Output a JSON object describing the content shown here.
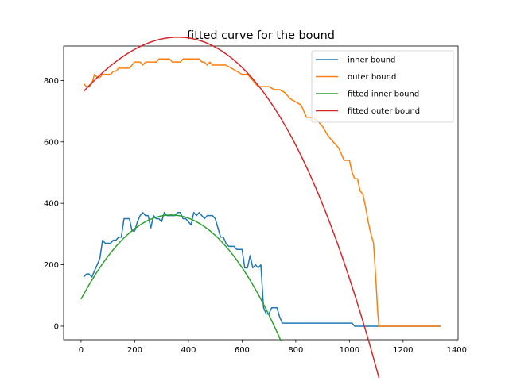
{
  "chart_data": {
    "type": "line",
    "title": "fitted curve for the bound",
    "xlabel": "",
    "ylabel": "",
    "xlim": [
      -65,
      1405
    ],
    "ylim": [
      -44,
      912
    ],
    "xticks": [
      0,
      200,
      400,
      600,
      800,
      1000,
      1200,
      1400
    ],
    "yticks": [
      0,
      200,
      400,
      600,
      800
    ],
    "grid": false,
    "legend_position": "upper right",
    "series": [
      {
        "name": "inner bound",
        "color": "#1f77b4",
        "x": [
          10,
          20,
          30,
          40,
          50,
          60,
          70,
          80,
          90,
          100,
          110,
          120,
          130,
          140,
          150,
          160,
          170,
          180,
          190,
          200,
          210,
          220,
          230,
          240,
          250,
          260,
          270,
          280,
          290,
          300,
          310,
          320,
          330,
          340,
          350,
          360,
          370,
          380,
          390,
          400,
          410,
          420,
          430,
          440,
          450,
          460,
          470,
          480,
          490,
          500,
          510,
          520,
          530,
          540,
          550,
          560,
          570,
          580,
          590,
          600,
          610,
          620,
          630,
          640,
          650,
          660,
          670,
          680,
          690,
          700,
          710,
          720,
          730,
          740,
          750,
          760,
          770,
          780,
          790,
          800,
          850,
          900,
          950,
          1000,
          1010,
          1020,
          1030,
          1040,
          1050,
          1100,
          1150,
          1200,
          1250,
          1300,
          1340
        ],
        "y": [
          160,
          170,
          170,
          160,
          180,
          200,
          220,
          280,
          270,
          270,
          270,
          280,
          280,
          290,
          290,
          350,
          350,
          350,
          310,
          310,
          340,
          360,
          370,
          360,
          360,
          320,
          360,
          350,
          350,
          340,
          370,
          360,
          360,
          360,
          360,
          370,
          370,
          350,
          350,
          340,
          330,
          370,
          360,
          370,
          360,
          350,
          360,
          360,
          360,
          350,
          320,
          290,
          290,
          270,
          260,
          260,
          260,
          250,
          250,
          250,
          190,
          190,
          230,
          190,
          200,
          190,
          200,
          60,
          40,
          40,
          60,
          60,
          60,
          30,
          10,
          10,
          10,
          10,
          10,
          10,
          10,
          10,
          10,
          10,
          10,
          0,
          0,
          0,
          0,
          0,
          0,
          0,
          0,
          0,
          0
        ]
      },
      {
        "name": "outer bound",
        "color": "#ff7f0e",
        "x": [
          10,
          20,
          30,
          40,
          50,
          60,
          70,
          80,
          90,
          100,
          110,
          120,
          130,
          140,
          150,
          160,
          170,
          180,
          190,
          200,
          210,
          220,
          230,
          240,
          250,
          260,
          270,
          280,
          290,
          300,
          310,
          320,
          330,
          340,
          350,
          360,
          370,
          380,
          390,
          400,
          410,
          420,
          430,
          440,
          450,
          460,
          470,
          480,
          490,
          500,
          520,
          540,
          560,
          580,
          600,
          620,
          640,
          660,
          680,
          700,
          720,
          740,
          760,
          780,
          800,
          820,
          840,
          860,
          880,
          900,
          920,
          940,
          960,
          980,
          1000,
          1010,
          1020,
          1030,
          1040,
          1050,
          1060,
          1070,
          1080,
          1090,
          1100,
          1105,
          1110,
          1150,
          1200,
          1250,
          1300,
          1340
        ],
        "y": [
          790,
          780,
          780,
          790,
          820,
          810,
          810,
          820,
          820,
          820,
          820,
          830,
          830,
          840,
          840,
          840,
          840,
          840,
          850,
          860,
          860,
          860,
          850,
          860,
          860,
          860,
          860,
          860,
          870,
          870,
          870,
          870,
          870,
          860,
          860,
          860,
          860,
          870,
          870,
          870,
          870,
          870,
          870,
          870,
          860,
          860,
          850,
          860,
          850,
          850,
          850,
          850,
          840,
          830,
          820,
          820,
          800,
          780,
          780,
          780,
          770,
          770,
          760,
          740,
          730,
          720,
          680,
          680,
          670,
          650,
          620,
          600,
          580,
          540,
          540,
          500,
          480,
          480,
          440,
          430,
          390,
          340,
          300,
          270,
          130,
          50,
          0,
          0,
          0,
          0,
          0,
          0
        ]
      },
      {
        "name": "fitted inner bound",
        "color": "#2ca02c",
        "fit": {
          "kind": "quadratic",
          "peak_x": 335,
          "peak_y": 362,
          "y0": 88,
          "x_start": 0,
          "x_end": 745
        }
      },
      {
        "name": "fitted outer bound",
        "color": "#d62728",
        "fit": {
          "kind": "cubic",
          "coefficients": [
            755,
            0.966,
            -0.001071,
            -4.94e-07
          ],
          "x_start": 10,
          "x_end": 1110
        }
      }
    ]
  }
}
